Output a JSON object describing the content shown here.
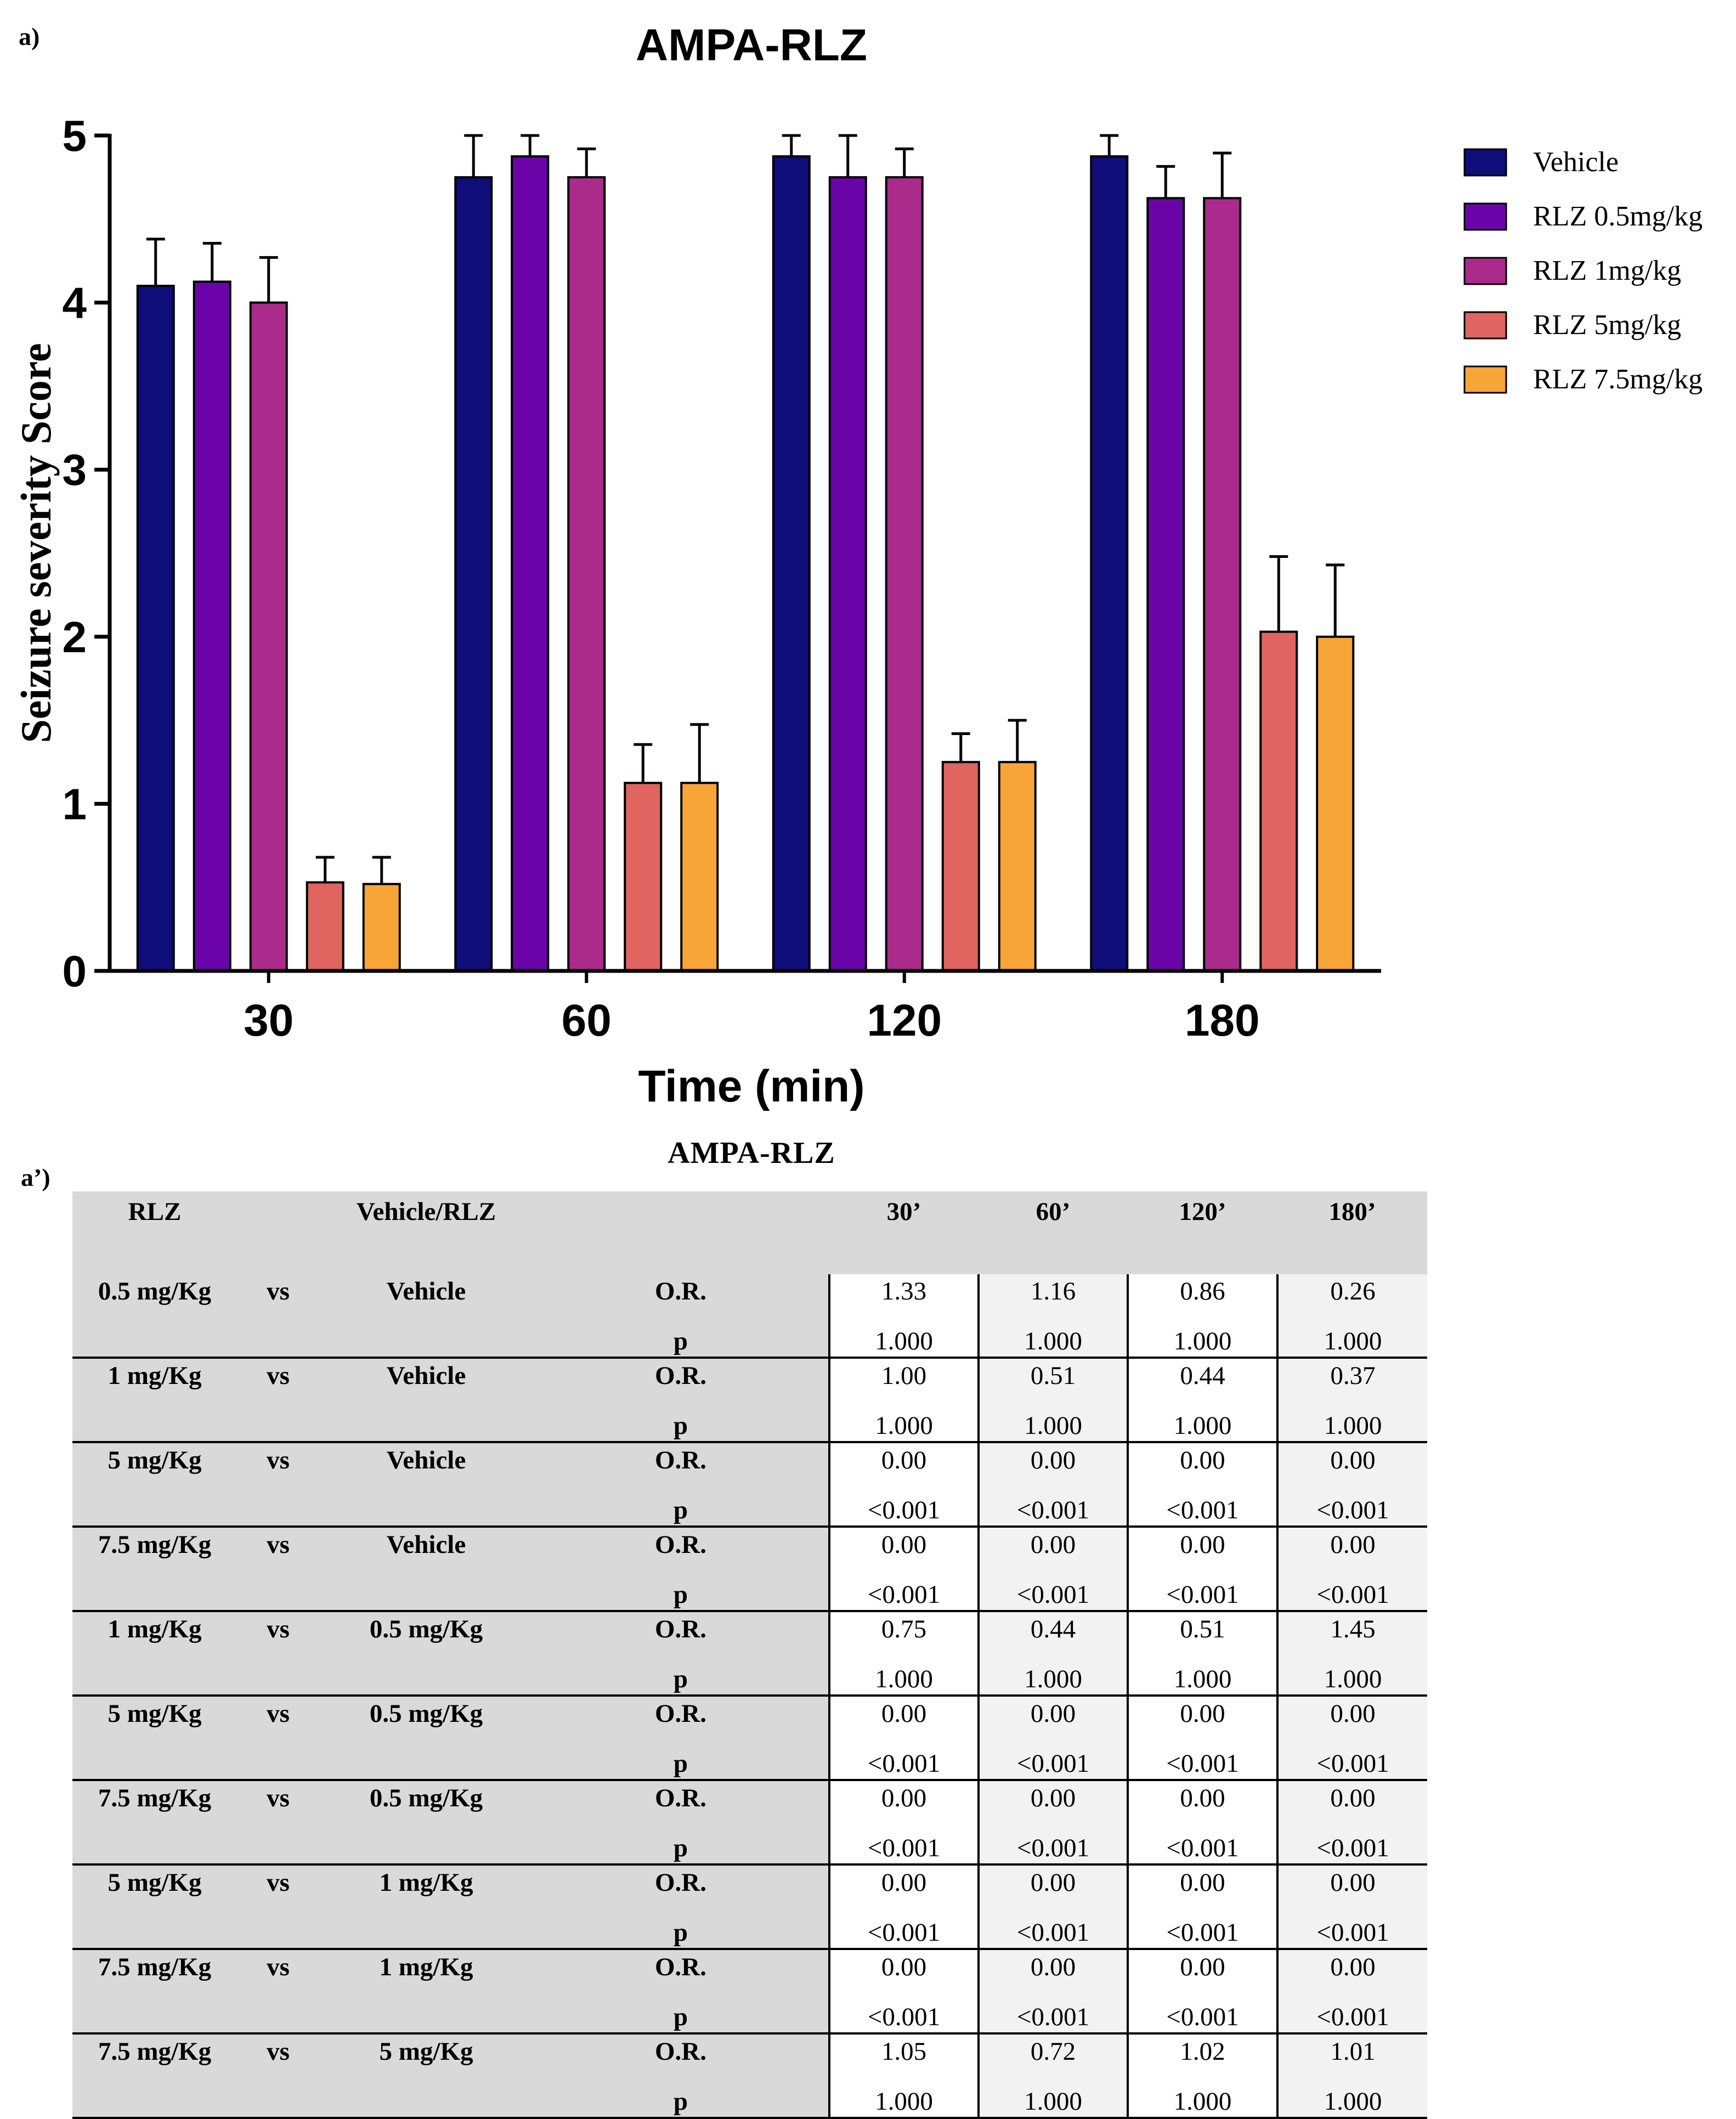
{
  "panel_labels": {
    "chart": "a)",
    "table": "a’)"
  },
  "chart_data": {
    "type": "bar",
    "title": "AMPA-RLZ",
    "xlabel": "Time (min)",
    "ylabel": "Seizure severity Score",
    "ylim": [
      0,
      5
    ],
    "yticks": [
      "0",
      "1",
      "2",
      "3",
      "4",
      "5"
    ],
    "categories": [
      "30",
      "60",
      "120",
      "180"
    ],
    "legend_position": "right",
    "series": [
      {
        "name": "Vehicle",
        "color": "#0f0d7a",
        "values": [
          4.1,
          4.75,
          4.875,
          4.875
        ],
        "errors": [
          0.28,
          0.25,
          0.125,
          0.125
        ]
      },
      {
        "name": "RLZ 0.5mg/kg",
        "color": "#6a04a8",
        "values": [
          4.125,
          4.875,
          4.75,
          4.625
        ],
        "errors": [
          0.23,
          0.125,
          0.25,
          0.19
        ]
      },
      {
        "name": "RLZ 1mg/kg",
        "color": "#ab2b8c",
        "values": [
          4.0,
          4.75,
          4.75,
          4.625
        ],
        "errors": [
          0.27,
          0.17,
          0.17,
          0.27
        ]
      },
      {
        "name": "RLZ 5mg/kg",
        "color": "#e0645f",
        "values": [
          0.53,
          1.125,
          1.25,
          2.03
        ],
        "errors": [
          0.15,
          0.23,
          0.17,
          0.45
        ]
      },
      {
        "name": "RLZ 7.5mg/kg",
        "color": "#f8a537",
        "values": [
          0.52,
          1.125,
          1.25,
          2.0
        ],
        "errors": [
          0.16,
          0.35,
          0.25,
          0.43
        ]
      }
    ]
  },
  "table": {
    "title": "AMPA-RLZ",
    "headers": [
      "RLZ",
      "",
      "Vehicle/RLZ",
      "",
      "30’",
      "60’",
      "120’",
      "180’"
    ],
    "rows": [
      {
        "rlz": "0.5 mg/Kg",
        "vs": "vs",
        "comp": "Vehicle",
        "or_label": "O.R.",
        "p_label": "p",
        "or": [
          "1.33",
          "1.16",
          "0.86",
          "0.26"
        ],
        "p": [
          "1.000",
          "1.000",
          "1.000",
          "1.000"
        ]
      },
      {
        "rlz": "1 mg/Kg",
        "vs": "vs",
        "comp": "Vehicle",
        "or_label": "O.R.",
        "p_label": "p",
        "or": [
          "1.00",
          "0.51",
          "0.44",
          "0.37"
        ],
        "p": [
          "1.000",
          "1.000",
          "1.000",
          "1.000"
        ]
      },
      {
        "rlz": "5 mg/Kg",
        "vs": "vs",
        "comp": "Vehicle",
        "or_label": "O.R.",
        "p_label": "p",
        "or": [
          "0.00",
          "0.00",
          "0.00",
          "0.00"
        ],
        "p": [
          "<0.001",
          "<0.001",
          "<0.001",
          "<0.001"
        ]
      },
      {
        "rlz": "7.5 mg/Kg",
        "vs": "vs",
        "comp": "Vehicle",
        "or_label": "O.R.",
        "p_label": "p",
        "or": [
          "0.00",
          "0.00",
          "0.00",
          "0.00"
        ],
        "p": [
          "<0.001",
          "<0.001",
          "<0.001",
          "<0.001"
        ]
      },
      {
        "rlz": "1 mg/Kg",
        "vs": "vs",
        "comp": "0.5 mg/Kg",
        "or_label": "O.R.",
        "p_label": "p",
        "or": [
          "0.75",
          "0.44",
          "0.51",
          "1.45"
        ],
        "p": [
          "1.000",
          "1.000",
          "1.000",
          "1.000"
        ]
      },
      {
        "rlz": "5 mg/Kg",
        "vs": "vs",
        "comp": "0.5 mg/Kg",
        "or_label": "O.R.",
        "p_label": "p",
        "or": [
          "0.00",
          "0.00",
          "0.00",
          "0.00"
        ],
        "p": [
          "<0.001",
          "<0.001",
          "<0.001",
          "<0.001"
        ]
      },
      {
        "rlz": "7.5 mg/Kg",
        "vs": "vs",
        "comp": "0.5 mg/Kg",
        "or_label": "O.R.",
        "p_label": "p",
        "or": [
          "0.00",
          "0.00",
          "0.00",
          "0.00"
        ],
        "p": [
          "<0.001",
          "<0.001",
          "<0.001",
          "<0.001"
        ]
      },
      {
        "rlz": "5 mg/Kg",
        "vs": "vs",
        "comp": "1 mg/Kg",
        "or_label": "O.R.",
        "p_label": "p",
        "or": [
          "0.00",
          "0.00",
          "0.00",
          "0.00"
        ],
        "p": [
          "<0.001",
          "<0.001",
          "<0.001",
          "<0.001"
        ]
      },
      {
        "rlz": "7.5 mg/Kg",
        "vs": "vs",
        "comp": "1 mg/Kg",
        "or_label": "O.R.",
        "p_label": "p",
        "or": [
          "0.00",
          "0.00",
          "0.00",
          "0.00"
        ],
        "p": [
          "<0.001",
          "<0.001",
          "<0.001",
          "<0.001"
        ]
      },
      {
        "rlz": "7.5 mg/Kg",
        "vs": "vs",
        "comp": "5 mg/Kg",
        "or_label": "O.R.",
        "p_label": "p",
        "or": [
          "1.05",
          "0.72",
          "1.02",
          "1.01"
        ],
        "p": [
          "1.000",
          "1.000",
          "1.000",
          "1.000"
        ]
      }
    ]
  }
}
